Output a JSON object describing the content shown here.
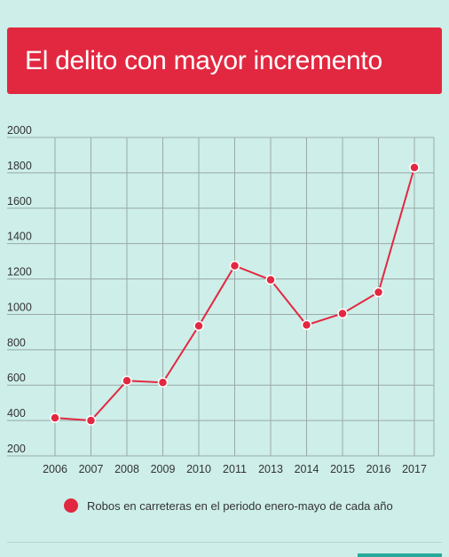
{
  "title": "El delito con mayor incremento",
  "chart_data": {
    "type": "line",
    "title": "El delito con mayor incremento",
    "categories": [
      "2006",
      "2007",
      "2008",
      "2009",
      "2010",
      "2011",
      "2013",
      "2014",
      "2015",
      "2016",
      "2017"
    ],
    "series": [
      {
        "name": "Robos en carreteras en el periodo enero-mayo de cada año",
        "values": [
          415,
          400,
          625,
          615,
          935,
          1275,
          1195,
          940,
          1005,
          1125,
          1830
        ],
        "color": "#e22840"
      }
    ],
    "yticks": [
      200,
      400,
      600,
      800,
      1000,
      1200,
      1400,
      1600,
      1800,
      2000
    ],
    "ylim": [
      200,
      2000
    ],
    "grid": true,
    "legend_position": "bottom"
  },
  "legend": {
    "label": "Robos en carreteras en el periodo enero-mayo de cada año",
    "color": "#e22840"
  }
}
